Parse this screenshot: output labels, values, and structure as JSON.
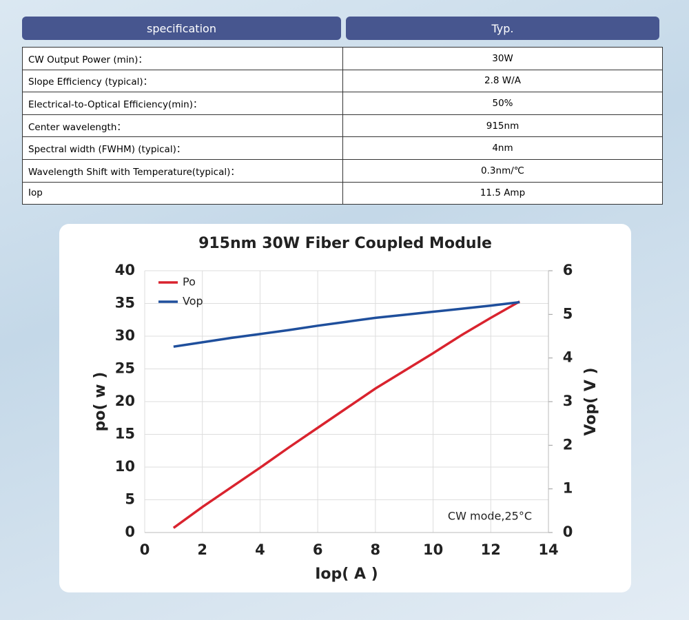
{
  "table": {
    "header": [
      "specification",
      "Typ."
    ],
    "rows": [
      [
        "CW Output Power (min)：",
        "30W"
      ],
      [
        "Slope Efficiency (typical)：",
        "2.8 W/A"
      ],
      [
        "Electrical-to-Optical Efficiency(min)：",
        "50%"
      ],
      [
        "Center wavelength：",
        "915nm"
      ],
      [
        "Spectral width (FWHM) (typical)：",
        "4nm"
      ],
      [
        "Wavelength Shift with Temperature(typical)：",
        "0.3nm/℃"
      ],
      [
        "Iop",
        "11.5 Amp"
      ]
    ]
  },
  "chart_data": {
    "type": "line",
    "title": "915nm 30W Fiber Coupled Module",
    "x_label": "Iop( A )",
    "y_label": "po( w )",
    "y2_label": "Vop( V )",
    "annotation": "CW mode,25°C",
    "x": [
      1,
      2,
      3,
      4,
      5,
      6,
      7,
      8,
      9,
      10,
      11,
      12,
      13
    ],
    "xlim": [
      0,
      14
    ],
    "xticks": [
      0,
      2,
      4,
      6,
      8,
      10,
      12,
      14
    ],
    "ylim": [
      0,
      40
    ],
    "yticks": [
      0,
      5,
      10,
      15,
      20,
      25,
      30,
      35,
      40
    ],
    "y2lim": [
      0,
      6
    ],
    "y2ticks": [
      0,
      1,
      2,
      3,
      4,
      5,
      6
    ],
    "grid": true,
    "legend": "upper left",
    "series": [
      {
        "name": "Po",
        "color": "#d9232e",
        "values": [
          0.7,
          3.9,
          6.9,
          9.9,
          13,
          16,
          19,
          22,
          24.7,
          27.4,
          30.2,
          32.8,
          35.3
        ]
      },
      {
        "name": "Vop",
        "color": "#1f4f9c",
        "axis": "y2",
        "values": [
          4.26,
          4.36,
          4.46,
          4.55,
          4.64,
          4.74,
          4.83,
          4.92,
          4.99,
          5.06,
          5.13,
          5.2,
          5.28
        ]
      }
    ]
  }
}
